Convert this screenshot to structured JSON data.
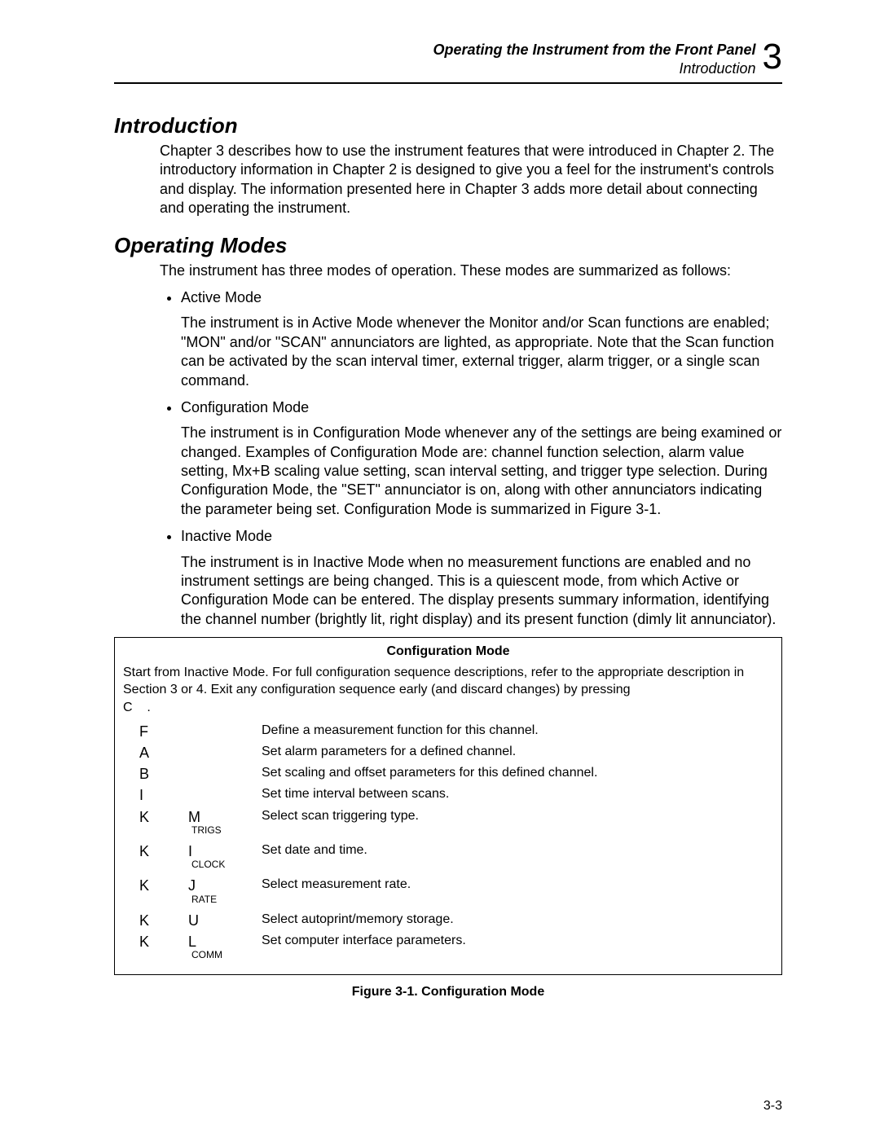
{
  "header": {
    "line1": "Operating the Instrument from the Front Panel",
    "line2": "Introduction",
    "chapter_number": "3"
  },
  "sections": {
    "intro": {
      "title": "Introduction",
      "body": "Chapter 3 describes how to use the instrument features that were introduced in Chapter 2. The introductory information in Chapter 2 is designed to give you a feel for the instrument's controls and display. The information presented here in Chapter 3 adds more detail about connecting and operating the instrument."
    },
    "modes": {
      "title": "Operating Modes",
      "lead": "The instrument has three modes of operation. These modes are summarized as follows:",
      "items": [
        {
          "name": "Active Mode",
          "desc": "The instrument is in Active Mode whenever the Monitor and/or Scan functions are enabled; \"MON\" and/or \"SCAN\" annunciators are lighted, as appropriate. Note that the Scan function can be activated by the scan interval timer, external trigger, alarm trigger, or a single scan command."
        },
        {
          "name": "Configuration Mode",
          "desc": "The instrument is in Configuration Mode whenever any of the settings are being examined or changed. Examples of Configuration Mode are: channel function selection, alarm value setting, Mx+B scaling value setting, scan interval setting, and trigger type selection. During Configuration Mode, the \"SET\" annunciator is on, along with other annunciators indicating the parameter being set. Configuration Mode is summarized in Figure 3-1."
        },
        {
          "name": "Inactive Mode",
          "desc": "The instrument is in Inactive Mode when no measurement functions are enabled and no instrument settings are being changed. This is a quiescent mode, from which Active or Configuration Mode can be entered. The display presents summary information, identifying the channel number (brightly lit, right display) and its present function (dimly lit annunciator)."
        }
      ]
    }
  },
  "figure": {
    "inner_title": "Configuration Mode",
    "intro_text": "Start from Inactive Mode. For full configuration sequence descriptions, refer to the appropriate description in Section 3 or 4. Exit any configuration sequence early (and discard changes) by pressing",
    "intro_key": "C",
    "intro_suffix": ".",
    "rows": [
      {
        "k1": "F",
        "k2": "",
        "sub": "",
        "desc": "Define a measurement function for this channel."
      },
      {
        "k1": "A",
        "k2": "",
        "sub": "",
        "desc": "Set alarm parameters for a defined channel."
      },
      {
        "k1": "B",
        "k2": "",
        "sub": "",
        "desc": "Set scaling and offset parameters for this defined channel."
      },
      {
        "k1": "I",
        "k2": "",
        "sub": "",
        "desc": "Set time interval between scans."
      },
      {
        "k1": "K",
        "k2": "M",
        "sub": "TRIGS",
        "desc": "Select scan triggering type."
      },
      {
        "k1": "K",
        "k2": "I",
        "sub": "CLOCK",
        "desc": "Set date and time."
      },
      {
        "k1": "K",
        "k2": "J",
        "sub": "RATE",
        "desc": "Select measurement rate."
      },
      {
        "k1": "K",
        "k2": "U",
        "sub": "",
        "desc": "Select autoprint/memory storage."
      },
      {
        "k1": "K",
        "k2": "L",
        "sub": "COMM",
        "desc": "Set computer interface parameters."
      }
    ],
    "caption": "Figure 3-1. Configuration Mode"
  },
  "footer": {
    "page_number": "3-3"
  }
}
